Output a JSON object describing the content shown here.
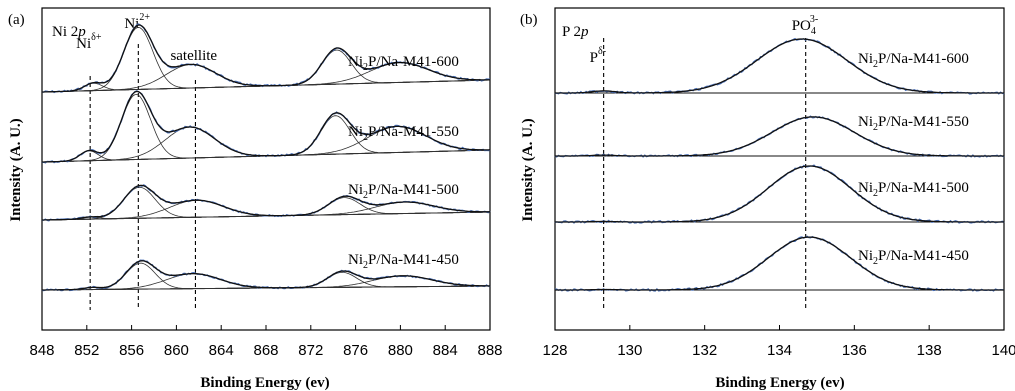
{
  "chart_data": [
    {
      "type": "line",
      "panel_label": "(a)",
      "element": "Ni 2p",
      "xlabel": "Binding Energy (ev)",
      "ylabel": "Intensity (A. U.)",
      "xlim": [
        848,
        888
      ],
      "xticks": [
        848,
        852,
        856,
        860,
        864,
        868,
        872,
        876,
        880,
        884,
        888
      ],
      "reference_lines_eV": [
        852.3,
        856.6,
        861.7
      ],
      "annotations": [
        {
          "label": "Ni",
          "sup": "δ+",
          "x": 852.3
        },
        {
          "label": "Ni",
          "sup": "2+",
          "x": 856.6
        },
        {
          "label": "satellite",
          "sup": "",
          "x": 861.7
        }
      ],
      "series": [
        {
          "name": "Ni2P/Na-M41-600",
          "label_main": "Ni",
          "label_sub": "2",
          "label_rest": "P/Na-M41-600",
          "peaks": [
            {
              "center": 852.6,
              "height": 0.12,
              "width": 0.8
            },
            {
              "center": 856.6,
              "height": 1.0,
              "width": 1.3
            },
            {
              "center": 861.3,
              "height": 0.38,
              "width": 2.2
            },
            {
              "center": 874.3,
              "height": 0.55,
              "width": 1.3
            },
            {
              "center": 879.9,
              "height": 0.32,
              "width": 2.6
            }
          ]
        },
        {
          "name": "Ni2P/Na-M41-550",
          "label_main": "Ni",
          "label_sub": "2",
          "label_rest": "P/Na-M41-550",
          "peaks": [
            {
              "center": 852.2,
              "height": 0.16,
              "width": 0.8
            },
            {
              "center": 856.4,
              "height": 1.05,
              "width": 1.3
            },
            {
              "center": 861.2,
              "height": 0.5,
              "width": 2.2
            },
            {
              "center": 874.2,
              "height": 0.62,
              "width": 1.3
            },
            {
              "center": 879.7,
              "height": 0.42,
              "width": 2.6
            }
          ]
        },
        {
          "name": "Ni2P/Na-M41-500",
          "label_main": "Ni",
          "label_sub": "2",
          "label_rest": "P/Na-M41-500",
          "peaks": [
            {
              "center": 852.3,
              "height": 0.04,
              "width": 0.8
            },
            {
              "center": 856.7,
              "height": 0.62,
              "width": 1.4
            },
            {
              "center": 861.8,
              "height": 0.34,
              "width": 2.4
            },
            {
              "center": 875.0,
              "height": 0.34,
              "width": 1.4
            },
            {
              "center": 880.4,
              "height": 0.23,
              "width": 2.6
            }
          ]
        },
        {
          "name": "Ni2P/Na-M41-450",
          "label_main": "Ni",
          "label_sub": "2",
          "label_rest": "P/Na-M41-450",
          "peaks": [
            {
              "center": 852.5,
              "height": 0.04,
              "width": 0.8
            },
            {
              "center": 856.8,
              "height": 0.52,
              "width": 1.3
            },
            {
              "center": 861.5,
              "height": 0.3,
              "width": 2.4
            },
            {
              "center": 874.8,
              "height": 0.3,
              "width": 1.3
            },
            {
              "center": 880.2,
              "height": 0.22,
              "width": 2.6
            }
          ]
        }
      ]
    },
    {
      "type": "line",
      "panel_label": "(b)",
      "element": "P 2p",
      "xlabel": "Binding Energy (ev)",
      "ylabel": "Intensity (A. U.)",
      "xlim": [
        128,
        140
      ],
      "xticks": [
        128,
        130,
        132,
        134,
        136,
        138,
        140
      ],
      "reference_lines_eV": [
        129.3,
        134.7
      ],
      "annotations": [
        {
          "label": "P",
          "sup": "δ-",
          "x": 129.3
        },
        {
          "label": "PO",
          "sub": "4",
          "sup": "3-",
          "x": 134.7
        }
      ],
      "series": [
        {
          "name": "Ni2P/Na-M41-600",
          "label_main": "Ni",
          "label_sub": "2",
          "label_rest": "P/Na-M41-600",
          "peaks": [
            {
              "center": 129.3,
              "height": 0.04,
              "width": 0.3
            },
            {
              "center": 134.6,
              "height": 1.0,
              "width": 1.2
            }
          ]
        },
        {
          "name": "Ni2P/Na-M41-550",
          "label_main": "Ni",
          "label_sub": "2",
          "label_rest": "P/Na-M41-550",
          "peaks": [
            {
              "center": 129.3,
              "height": 0.02,
              "width": 0.3
            },
            {
              "center": 134.9,
              "height": 0.85,
              "width": 1.1
            }
          ]
        },
        {
          "name": "Ni2P/Na-M41-500",
          "label_main": "Ni",
          "label_sub": "2",
          "label_rest": "P/Na-M41-500",
          "peaks": [
            {
              "center": 129.3,
              "height": 0.01,
              "width": 0.3
            },
            {
              "center": 134.8,
              "height": 1.0,
              "width": 1.1
            }
          ]
        },
        {
          "name": "Ni2P/Na-M41-450",
          "label_main": "Ni",
          "label_sub": "2",
          "label_rest": "P/Na-M41-450",
          "peaks": [
            {
              "center": 129.3,
              "height": 0.01,
              "width": 0.3
            },
            {
              "center": 134.8,
              "height": 0.98,
              "width": 1.1
            }
          ]
        }
      ]
    }
  ],
  "colors": {
    "raw": "#4a6fb5",
    "fit": "#111111"
  }
}
